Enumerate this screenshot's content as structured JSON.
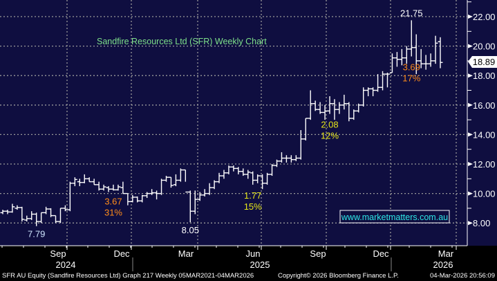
{
  "chart_data": {
    "type": "ohlc",
    "title": "Sandfire Resources Ltd (SFR) Weekly Chart",
    "ylim": [
      6.5,
      22.8
    ],
    "y_ticks": [
      "8.00",
      "10.00",
      "12.00",
      "14.00",
      "16.00",
      "18.00",
      "20.00",
      "22.00"
    ],
    "y_tick_values": [
      8,
      10,
      12,
      14,
      16,
      18,
      20,
      22
    ],
    "x_months": [
      "Sep",
      "Dec",
      "Mar",
      "Jun",
      "Sep",
      "Dec",
      "Mar"
    ],
    "x_years": [
      "2024",
      "2025",
      "2026"
    ],
    "grid": true,
    "last_price": "18.89",
    "last_price_value": 18.89,
    "bars": [
      [
        8.7,
        8.9,
        8.6,
        8.8
      ],
      [
        8.8,
        8.9,
        8.6,
        8.75
      ],
      [
        8.75,
        9.3,
        8.7,
        9.1
      ],
      [
        9.0,
        9.2,
        8.9,
        9.05
      ],
      [
        9.05,
        9.1,
        8.1,
        8.25
      ],
      [
        8.2,
        8.5,
        8.1,
        8.3
      ],
      [
        8.3,
        8.8,
        8.2,
        8.6
      ],
      [
        8.6,
        8.7,
        7.79,
        8.1
      ],
      [
        8.1,
        8.7,
        8.0,
        8.7
      ],
      [
        8.7,
        9.1,
        8.6,
        8.95
      ],
      [
        8.95,
        9.0,
        8.4,
        8.5
      ],
      [
        8.5,
        8.5,
        8.0,
        8.1
      ],
      [
        8.1,
        9.0,
        8.0,
        9.0
      ],
      [
        9.0,
        9.2,
        8.8,
        8.9
      ],
      [
        8.9,
        10.8,
        8.8,
        10.7
      ],
      [
        10.7,
        11.1,
        10.5,
        10.95
      ],
      [
        10.8,
        11.0,
        10.5,
        10.75
      ],
      [
        10.75,
        11.3,
        10.7,
        11.0
      ],
      [
        11.0,
        11.1,
        10.8,
        10.8
      ],
      [
        10.8,
        11.0,
        10.6,
        10.6
      ],
      [
        10.6,
        10.8,
        10.2,
        10.3
      ],
      [
        10.3,
        10.6,
        10.2,
        10.45
      ],
      [
        10.4,
        10.5,
        10.1,
        10.3
      ],
      [
        10.3,
        10.6,
        10.2,
        10.25
      ],
      [
        10.25,
        10.6,
        10.2,
        10.45
      ],
      [
        10.4,
        10.8,
        10.0,
        10.0
      ],
      [
        10.0,
        10.0,
        9.2,
        9.45
      ],
      [
        9.45,
        9.9,
        9.4,
        9.75
      ],
      [
        9.75,
        9.8,
        9.4,
        9.5
      ],
      [
        9.5,
        9.9,
        9.4,
        9.85
      ],
      [
        9.85,
        10.1,
        9.7,
        10.0
      ],
      [
        10.0,
        10.3,
        9.9,
        10.05
      ],
      [
        10.05,
        10.2,
        9.6,
        10.0
      ],
      [
        10.0,
        11.0,
        9.9,
        10.9
      ],
      [
        10.9,
        11.2,
        10.8,
        11.1
      ],
      [
        11.1,
        11.1,
        10.4,
        10.55
      ],
      [
        10.6,
        11.3,
        10.5,
        10.9
      ],
      [
        10.9,
        11.7,
        10.8,
        11.6
      ],
      [
        11.6,
        11.6,
        10.8,
        10.1
      ],
      [
        10.1,
        10.2,
        8.05,
        8.8
      ],
      [
        8.8,
        10.2,
        8.6,
        9.6
      ],
      [
        9.6,
        10.1,
        9.5,
        9.9
      ],
      [
        9.9,
        10.3,
        9.8,
        10.0
      ],
      [
        10.0,
        10.7,
        9.9,
        10.4
      ],
      [
        10.4,
        10.9,
        10.3,
        10.8
      ],
      [
        10.8,
        11.4,
        10.7,
        11.2
      ],
      [
        11.2,
        11.6,
        11.0,
        11.4
      ],
      [
        11.4,
        11.9,
        11.3,
        11.8
      ],
      [
        11.8,
        11.9,
        11.5,
        11.7
      ],
      [
        11.7,
        11.8,
        11.3,
        11.5
      ],
      [
        11.5,
        11.7,
        11.2,
        11.3
      ],
      [
        11.3,
        11.6,
        11.0,
        11.45
      ],
      [
        11.4,
        11.5,
        10.6,
        10.9
      ],
      [
        10.9,
        11.3,
        10.7,
        11.2
      ],
      [
        11.2,
        11.3,
        10.3,
        10.7
      ],
      [
        10.7,
        11.4,
        10.6,
        11.3
      ],
      [
        11.3,
        12.0,
        11.2,
        11.9
      ],
      [
        11.9,
        12.3,
        11.8,
        12.2
      ],
      [
        12.2,
        12.8,
        12.1,
        12.4
      ],
      [
        12.4,
        12.6,
        12.1,
        12.4
      ],
      [
        12.4,
        12.6,
        12.1,
        12.3
      ],
      [
        12.3,
        12.6,
        12.2,
        12.4
      ],
      [
        12.4,
        14.3,
        12.3,
        13.7
      ],
      [
        13.7,
        15.1,
        13.6,
        15.1
      ],
      [
        15.1,
        17.0,
        15.0,
        16.1
      ],
      [
        16.1,
        16.3,
        15.6,
        15.7
      ],
      [
        15.7,
        16.2,
        15.4,
        15.5
      ],
      [
        15.5,
        16.0,
        15.0,
        15.6
      ],
      [
        15.6,
        16.6,
        15.4,
        16.1
      ],
      [
        16.1,
        16.4,
        15.0,
        15.7
      ],
      [
        15.7,
        16.2,
        15.4,
        16.0
      ],
      [
        16.0,
        16.7,
        15.7,
        16.1
      ],
      [
        16.1,
        16.2,
        14.9,
        15.1
      ],
      [
        15.1,
        15.7,
        15.0,
        15.6
      ],
      [
        15.6,
        16.1,
        15.5,
        16.0
      ],
      [
        16.0,
        17.2,
        15.9,
        17.0
      ],
      [
        17.0,
        17.2,
        16.6,
        17.1
      ],
      [
        17.1,
        17.2,
        16.6,
        17.0
      ],
      [
        17.0,
        18.1,
        16.9,
        17.2
      ],
      [
        17.2,
        18.3,
        17.0,
        18.1
      ],
      [
        18.1,
        18.2,
        17.2,
        18.1
      ],
      [
        18.2,
        19.5,
        18.2,
        19.2
      ],
      [
        19.2,
        19.6,
        18.6,
        19.1
      ],
      [
        19.1,
        19.8,
        18.7,
        19.2
      ],
      [
        19.2,
        20.0,
        18.8,
        19.8
      ],
      [
        19.8,
        21.75,
        19.3,
        19.9
      ],
      [
        19.9,
        20.8,
        18.1,
        19.0
      ],
      [
        19.0,
        19.8,
        18.5,
        18.8
      ],
      [
        18.8,
        19.4,
        18.4,
        18.8
      ],
      [
        18.8,
        19.5,
        18.6,
        19.0
      ],
      [
        19.0,
        20.7,
        18.8,
        20.2
      ],
      [
        20.3,
        20.6,
        18.5,
        18.89
      ]
    ],
    "annotations": [
      {
        "text": "7.79",
        "color": "#cfe6ff",
        "bar": 7,
        "pos": "below"
      },
      {
        "text": "3.67",
        "color": "#ff8c1a",
        "bar": 23,
        "pos": "below2"
      },
      {
        "text": "31%",
        "color": "#ff8c1a",
        "bar": 23,
        "pos": "below3"
      },
      {
        "text": "8.05",
        "color": "#ffffff",
        "bar": 39,
        "pos": "below"
      },
      {
        "text": "1.77",
        "color": "#e6e619",
        "bar": 52,
        "pos": "below2"
      },
      {
        "text": "15%",
        "color": "#e6e619",
        "bar": 52,
        "pos": "below3"
      },
      {
        "text": "2.08",
        "color": "#e6e619",
        "bar": 68,
        "pos": "below2"
      },
      {
        "text": "12%",
        "color": "#e6e619",
        "bar": 68,
        "pos": "below3"
      },
      {
        "text": "3.69",
        "color": "#ff8c1a",
        "bar": 85,
        "pos": "below2"
      },
      {
        "text": "17%",
        "color": "#ff8c1a",
        "bar": 85,
        "pos": "below3"
      },
      {
        "text": "21.75",
        "color": "#ffffff",
        "bar": 85,
        "pos": "above"
      }
    ]
  },
  "watermark": "www.marketmatters.com.au",
  "footer": {
    "left": "SFR AU Equity (Sandfire Resources Ltd) Graph 217 Weekly 05MAR2021-04MAR2026",
    "center": "Copyright© 2026 Bloomberg Finance L.P.",
    "right": "04-Mar-2026 20:56:09"
  },
  "colors": {
    "background": "#0f0e40",
    "title": "#7ee08a",
    "watermark": "#2ee6e6",
    "grid": "#9a9a9a",
    "bars": "#ffffff"
  }
}
